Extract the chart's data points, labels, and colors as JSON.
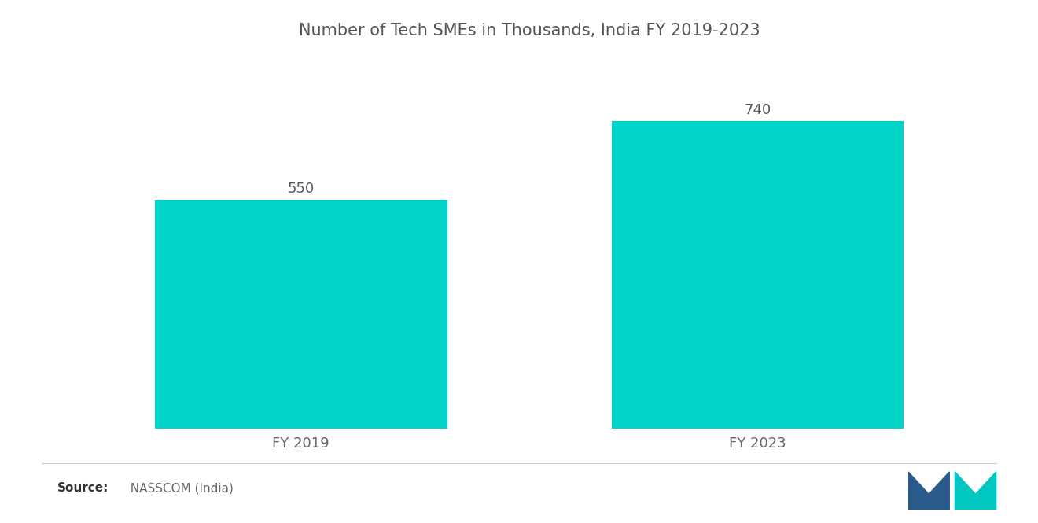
{
  "title": "Number of Tech SMEs in Thousands, India FY 2019-2023",
  "categories": [
    "FY 2019",
    "FY 2023"
  ],
  "values": [
    550,
    740
  ],
  "bar_color": "#00D4C8",
  "background_color": "#ffffff",
  "title_color": "#555555",
  "label_color": "#666666",
  "value_color": "#555555",
  "title_fontsize": 15,
  "label_fontsize": 13,
  "value_fontsize": 13,
  "source_bold": "Source:",
  "source_rest": "  NASSCOM (India)",
  "ylim": [
    0,
    880
  ],
  "bar_width": 0.32,
  "x_positions": [
    0.25,
    0.75
  ],
  "xlim": [
    0,
    1
  ],
  "logo_blue": "#2a5b8b",
  "logo_teal": "#00C8C0"
}
